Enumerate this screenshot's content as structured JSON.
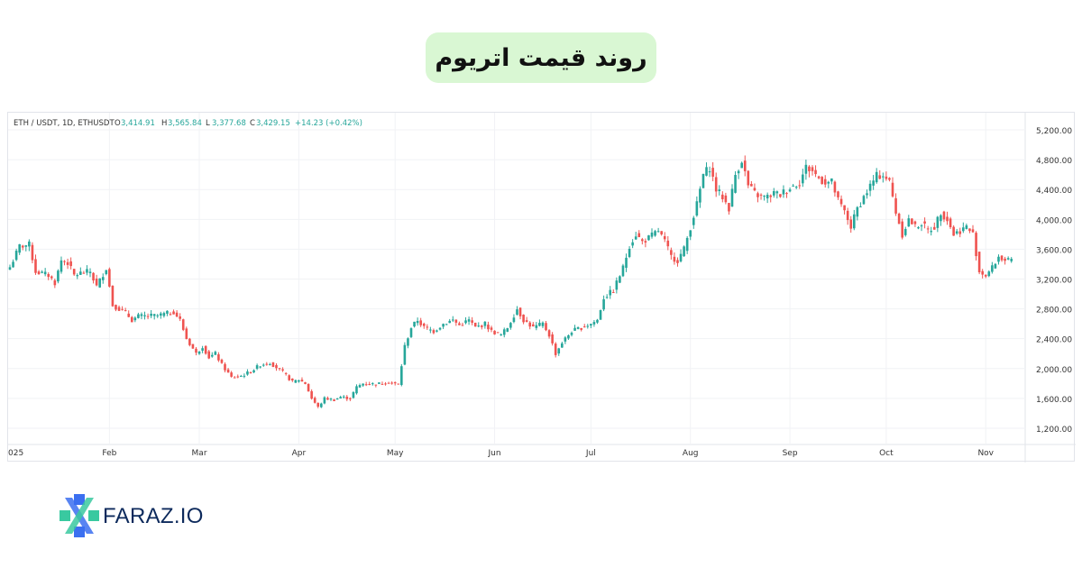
{
  "title": "روند قیمت اتریوم",
  "brand": {
    "name": "FARAZ.IO",
    "accent_green": "#39c9a0",
    "accent_blue": "#3b6ff0",
    "text_color": "#0d2a5c"
  },
  "chart_data": {
    "type": "candlestick",
    "symbol_line": "ETH / USDT, 1D, ETHUSDT",
    "ohlc": {
      "o_label": "O",
      "o_value": "3,414.91",
      "h_label": "H",
      "h_value": "3,565.84",
      "l_label": "L",
      "l_value": "3,377.68",
      "c_label": "C",
      "c_value": "3,429.15",
      "change": "+14.23 (+0.42%)"
    },
    "ylim": [
      1000,
      5400
    ],
    "y_ticks": [
      {
        "value": 5200,
        "label": "5,200.00"
      },
      {
        "value": 4800,
        "label": "4,800.00"
      },
      {
        "value": 4400,
        "label": "4,400.00"
      },
      {
        "value": 4000,
        "label": "4,000.00"
      },
      {
        "value": 3600,
        "label": "3,600.00"
      },
      {
        "value": 3200,
        "label": "3,200.00"
      },
      {
        "value": 2800,
        "label": "2,800.00"
      },
      {
        "value": 2400,
        "label": "2,400.00"
      },
      {
        "value": 2000,
        "label": "2,000.00"
      },
      {
        "value": 1600,
        "label": "1,600.00"
      },
      {
        "value": 1200,
        "label": "1,200.00"
      }
    ],
    "x_ticks": [
      {
        "day": 0,
        "label": "025"
      },
      {
        "day": 31,
        "label": "Feb"
      },
      {
        "day": 59,
        "label": "Mar"
      },
      {
        "day": 90,
        "label": "Apr"
      },
      {
        "day": 120,
        "label": "May"
      },
      {
        "day": 151,
        "label": "Jun"
      },
      {
        "day": 181,
        "label": "Jul"
      },
      {
        "day": 212,
        "label": "Aug"
      },
      {
        "day": 243,
        "label": "Sep"
      },
      {
        "day": 273,
        "label": "Oct"
      },
      {
        "day": 304,
        "label": "Nov"
      }
    ],
    "close_path": [
      [
        0,
        3360
      ],
      [
        3,
        3640
      ],
      [
        6,
        3660
      ],
      [
        8,
        3300
      ],
      [
        12,
        3250
      ],
      [
        14,
        3150
      ],
      [
        16,
        3450
      ],
      [
        18,
        3420
      ],
      [
        20,
        3250
      ],
      [
        22,
        3280
      ],
      [
        25,
        3300
      ],
      [
        27,
        3100
      ],
      [
        30,
        3350
      ],
      [
        32,
        2850
      ],
      [
        36,
        2750
      ],
      [
        38,
        2650
      ],
      [
        40,
        2700
      ],
      [
        46,
        2710
      ],
      [
        51,
        2760
      ],
      [
        53,
        2650
      ],
      [
        55,
        2400
      ],
      [
        58,
        2200
      ],
      [
        60,
        2300
      ],
      [
        62,
        2150
      ],
      [
        64,
        2200
      ],
      [
        66,
        2050
      ],
      [
        69,
        1880
      ],
      [
        72,
        1900
      ],
      [
        75,
        1960
      ],
      [
        78,
        2050
      ],
      [
        81,
        2080
      ],
      [
        85,
        1950
      ],
      [
        88,
        1820
      ],
      [
        90,
        1850
      ],
      [
        92,
        1800
      ],
      [
        94,
        1600
      ],
      [
        96,
        1480
      ],
      [
        98,
        1600
      ],
      [
        101,
        1580
      ],
      [
        103,
        1620
      ],
      [
        106,
        1600
      ],
      [
        108,
        1750
      ],
      [
        110,
        1800
      ],
      [
        114,
        1790
      ],
      [
        118,
        1820
      ],
      [
        121,
        1780
      ],
      [
        123,
        2300
      ],
      [
        125,
        2550
      ],
      [
        127,
        2650
      ],
      [
        129,
        2550
      ],
      [
        132,
        2500
      ],
      [
        135,
        2600
      ],
      [
        138,
        2650
      ],
      [
        140,
        2580
      ],
      [
        143,
        2650
      ],
      [
        145,
        2550
      ],
      [
        148,
        2600
      ],
      [
        150,
        2500
      ],
      [
        153,
        2450
      ],
      [
        155,
        2550
      ],
      [
        158,
        2800
      ],
      [
        160,
        2650
      ],
      [
        163,
        2550
      ],
      [
        166,
        2600
      ],
      [
        168,
        2450
      ],
      [
        170,
        2200
      ],
      [
        172,
        2350
      ],
      [
        175,
        2500
      ],
      [
        178,
        2550
      ],
      [
        181,
        2600
      ],
      [
        183,
        2650
      ],
      [
        185,
        2950
      ],
      [
        188,
        3050
      ],
      [
        191,
        3350
      ],
      [
        193,
        3650
      ],
      [
        195,
        3800
      ],
      [
        197,
        3700
      ],
      [
        199,
        3750
      ],
      [
        202,
        3850
      ],
      [
        204,
        3700
      ],
      [
        206,
        3500
      ],
      [
        208,
        3450
      ],
      [
        210,
        3600
      ],
      [
        212,
        3900
      ],
      [
        214,
        4200
      ],
      [
        216,
        4600
      ],
      [
        218,
        4700
      ],
      [
        220,
        4400
      ],
      [
        222,
        4300
      ],
      [
        224,
        4150
      ],
      [
        226,
        4600
      ],
      [
        228,
        4800
      ],
      [
        230,
        4450
      ],
      [
        232,
        4350
      ],
      [
        234,
        4300
      ],
      [
        236,
        4300
      ],
      [
        238,
        4350
      ],
      [
        240,
        4330
      ],
      [
        242,
        4400
      ],
      [
        244,
        4450
      ],
      [
        246,
        4500
      ],
      [
        248,
        4700
      ],
      [
        250,
        4650
      ],
      [
        252,
        4550
      ],
      [
        254,
        4500
      ],
      [
        256,
        4500
      ],
      [
        258,
        4250
      ],
      [
        260,
        4100
      ],
      [
        262,
        3900
      ],
      [
        264,
        4150
      ],
      [
        266,
        4300
      ],
      [
        268,
        4450
      ],
      [
        270,
        4580
      ],
      [
        272,
        4600
      ],
      [
        274,
        4500
      ],
      [
        276,
        4100
      ],
      [
        278,
        3800
      ],
      [
        280,
        4000
      ],
      [
        282,
        3900
      ],
      [
        284,
        3950
      ],
      [
        286,
        3850
      ],
      [
        288,
        3900
      ],
      [
        290,
        4100
      ],
      [
        292,
        4000
      ],
      [
        294,
        3800
      ],
      [
        296,
        3850
      ],
      [
        298,
        3900
      ],
      [
        300,
        3800
      ],
      [
        302,
        3300
      ],
      [
        304,
        3250
      ],
      [
        306,
        3350
      ],
      [
        308,
        3500
      ],
      [
        310,
        3450
      ],
      [
        312,
        3429
      ]
    ]
  }
}
